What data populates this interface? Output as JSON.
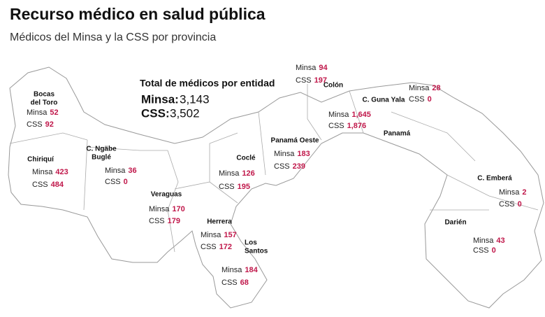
{
  "header": {
    "title": "Recurso médico en salud  pública",
    "subtitle": "Médicos del Minsa y la CSS  por provincia"
  },
  "totals": {
    "title": "Total de médicos por entidad",
    "rows": [
      {
        "label": "Minsa:",
        "value": "3,143"
      },
      {
        "label": "CSS:",
        "value": "3,502"
      }
    ]
  },
  "labels": {
    "minsa": "Minsa",
    "css": "CSS"
  },
  "regions": [
    {
      "name": [
        "Bocas",
        "del Toro"
      ],
      "minsa": "52",
      "css": "92"
    },
    {
      "name": [
        "Chiriquí"
      ],
      "minsa": "423",
      "css": "484"
    },
    {
      "name": [
        "C. Ngäbe",
        "Buglé"
      ],
      "minsa": "36",
      "css": "0"
    },
    {
      "name": [
        "Veraguas"
      ],
      "minsa": "170",
      "css": "179"
    },
    {
      "name": [
        "Coclé"
      ],
      "minsa": "126",
      "css": "195"
    },
    {
      "name": [
        "Herrera"
      ],
      "minsa": "157",
      "css": "172"
    },
    {
      "name": [
        "Los",
        "Santos"
      ],
      "minsa": "184",
      "css": "68"
    },
    {
      "name": [
        "Panamá Oeste"
      ],
      "minsa": "183",
      "css": "239"
    },
    {
      "name": [
        "Colón"
      ],
      "minsa": "94",
      "css": "197"
    },
    {
      "name": [
        "Panamá"
      ],
      "minsa": "1,645",
      "css": "1,876"
    },
    {
      "name": [
        "C. Guna Yala"
      ],
      "minsa": "28",
      "css": "0"
    },
    {
      "name": [
        "C. Emberá"
      ],
      "minsa": "2",
      "css": "0"
    },
    {
      "name": [
        "Darién"
      ],
      "minsa": "43",
      "css": "0"
    }
  ]
}
